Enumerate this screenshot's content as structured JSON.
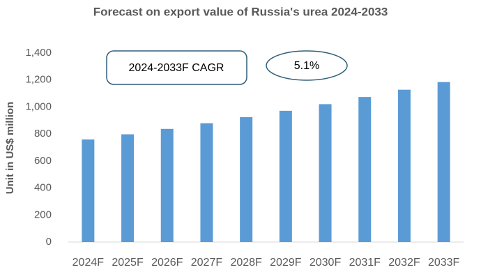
{
  "chart_data": {
    "type": "bar",
    "title": "Forecast on export value of Russia's urea 2024-2033",
    "y_label": "Unit in US$ million",
    "annotations": [
      "2024-2033F CAGR",
      "5.1%"
    ],
    "categories": [
      "2024F",
      "2025F",
      "2026F",
      "2027F",
      "2028F",
      "2029F",
      "2030F",
      "2031F",
      "2032F",
      "2033F"
    ],
    "values": [
      760,
      798,
      838,
      880,
      925,
      972,
      1021,
      1074,
      1128,
      1185
    ],
    "color": "#5b9bd5",
    "ylim": [
      0,
      1400
    ],
    "yticks": [
      0,
      200,
      400,
      600,
      800,
      {
        "value": 1000,
        "label": "1,000"
      },
      {
        "value": 1200,
        "label": "1,200"
      },
      {
        "value": 1400,
        "label": "1,400"
      }
    ],
    "grid": false
  }
}
